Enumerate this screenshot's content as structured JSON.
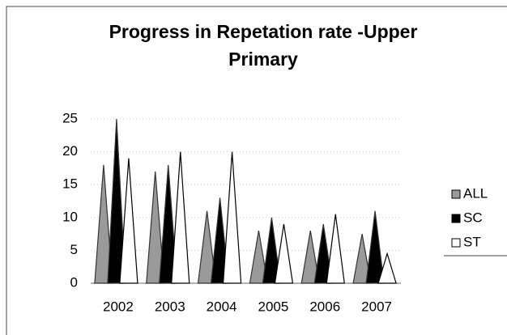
{
  "chart_data": {
    "type": "bar",
    "title": "Progress in Repetation rate -Upper Primary",
    "categories": [
      "2002",
      "2003",
      "2004",
      "2005",
      "2006",
      "2007"
    ],
    "series": [
      {
        "name": "ALL",
        "color": "#9a9a9a",
        "values": [
          18,
          17,
          11,
          8,
          8,
          7.5
        ]
      },
      {
        "name": "SC",
        "color": "#000000",
        "values": [
          25,
          18,
          13,
          10,
          9,
          11
        ]
      },
      {
        "name": "ST",
        "color": "#ffffff",
        "values": [
          19,
          20,
          20,
          9,
          10.5,
          4.5
        ]
      }
    ],
    "ylim": [
      0,
      25
    ],
    "yticks": [
      0,
      5,
      10,
      15,
      20,
      25
    ],
    "grid": true,
    "legend": "right"
  }
}
